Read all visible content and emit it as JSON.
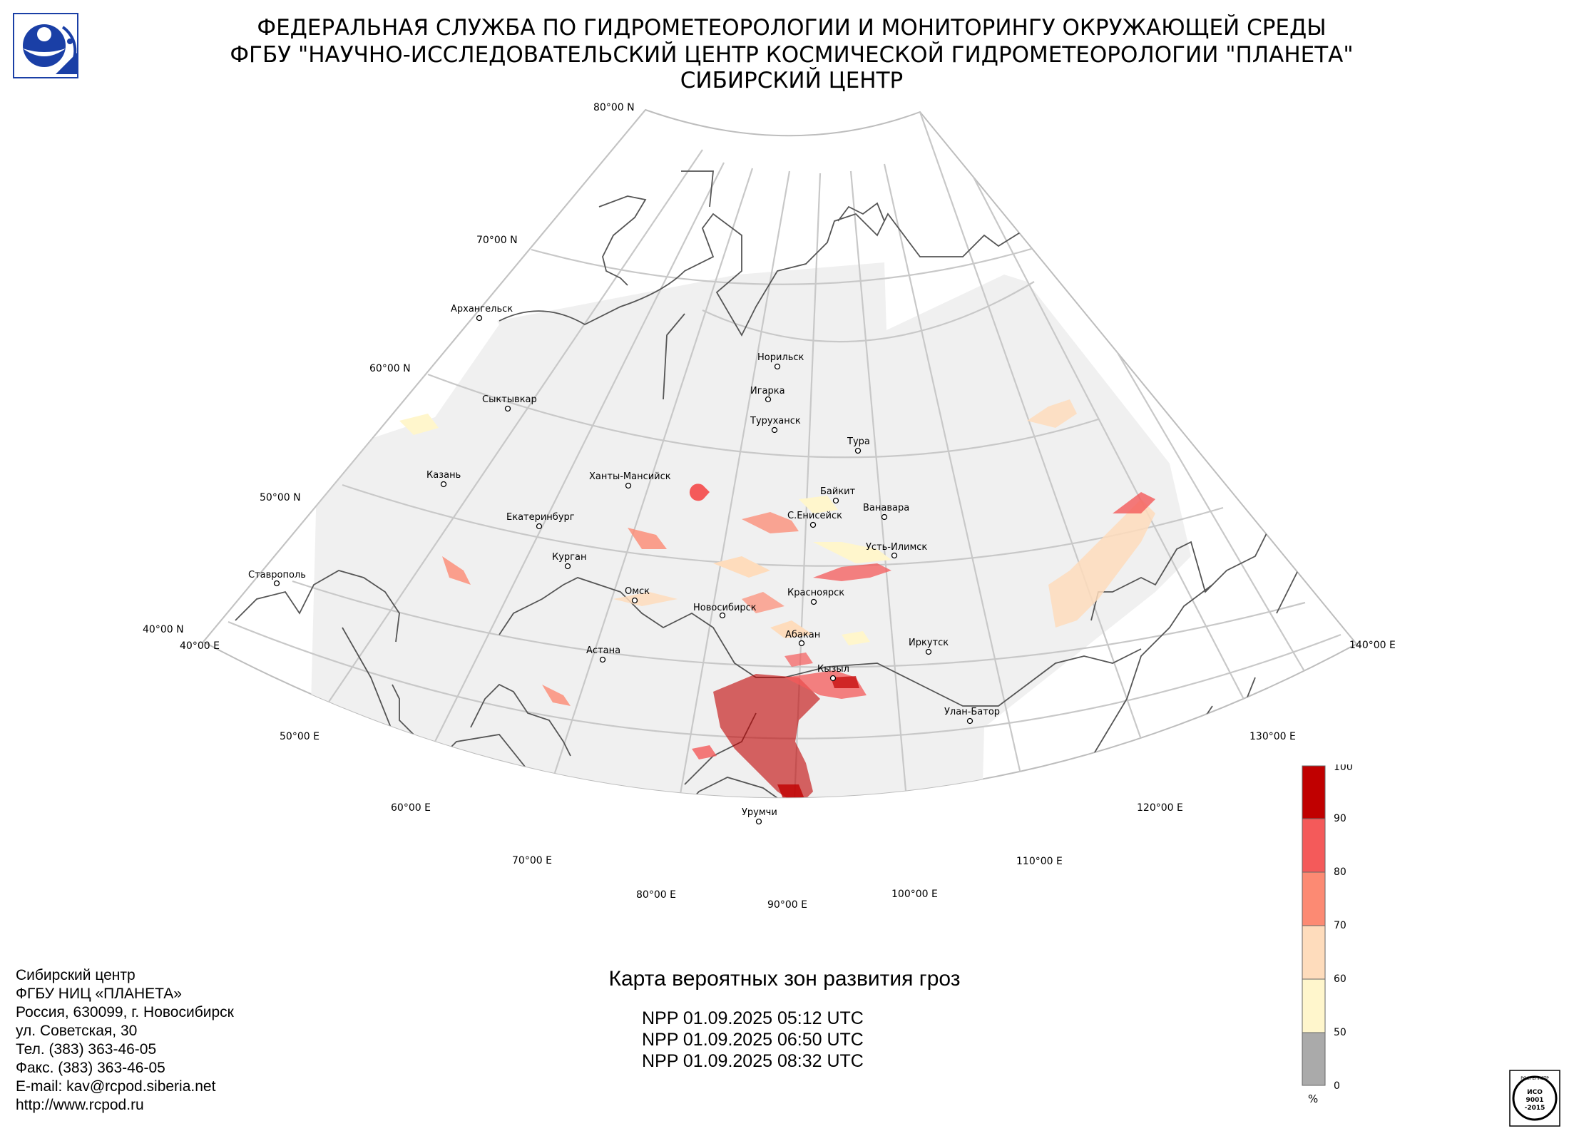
{
  "header": {
    "line1": "ФЕДЕРАЛЬНАЯ СЛУЖБА ПО ГИДРОМЕТЕОРОЛОГИИ И МОНИТОРИНГУ ОКРУЖАЮЩЕЙ СРЕДЫ",
    "line2": "ФГБУ \"НАУЧНО-ИССЛЕДОВАТЕЛЬСКИЙ ЦЕНТР КОСМИЧЕСКОЙ ГИДРОМЕТЕОРОЛОГИИ \"ПЛАНЕТА\"",
    "line3": "СИБИРСКИЙ ЦЕНТР"
  },
  "map": {
    "lat_labels": [
      "80°00 N",
      "70°00 N",
      "60°00 N",
      "50°00 N",
      "40°00 N"
    ],
    "lon_labels": [
      "40°00 E",
      "50°00 E",
      "60°00 E",
      "70°00 E",
      "80°00 E",
      "90°00 E",
      "100°00 E",
      "110°00 E",
      "120°00 E",
      "130°00 E",
      "140°00 E"
    ],
    "cities": [
      {
        "name": "Архангельск"
      },
      {
        "name": "Норильск"
      },
      {
        "name": "Игарка"
      },
      {
        "name": "Туруханск"
      },
      {
        "name": "Сыктывкар"
      },
      {
        "name": "Тура"
      },
      {
        "name": "Казань"
      },
      {
        "name": "Ханты-Мансийск"
      },
      {
        "name": "Байкит"
      },
      {
        "name": "Ванавара"
      },
      {
        "name": "Екатеринбург"
      },
      {
        "name": "С.Енисейск"
      },
      {
        "name": "Курган"
      },
      {
        "name": "Усть-Илимск"
      },
      {
        "name": "Ставрополь"
      },
      {
        "name": "Омск"
      },
      {
        "name": "Красноярск"
      },
      {
        "name": "Новосибирск"
      },
      {
        "name": "Абакан"
      },
      {
        "name": "Астана"
      },
      {
        "name": "Иркутск"
      },
      {
        "name": "Кызыл"
      },
      {
        "name": "Улан-Батор"
      },
      {
        "name": "Урумчи"
      }
    ],
    "colors": {
      "land_gray": "#f0f0f0",
      "graticule": "#c8c8c8",
      "coast": "#555555"
    }
  },
  "colorbar": {
    "ticks": [
      "0",
      "50",
      "60",
      "70",
      "80",
      "90",
      "100"
    ],
    "unit": "%",
    "colors": [
      "#aaaaaa",
      "#fff6cc",
      "#fedcbc",
      "#fc8a73",
      "#f45a5a",
      "#c00000"
    ]
  },
  "title": "Карта вероятных зон развития гроз",
  "passes": [
    "NPP 01.09.2025  05:12 UTC",
    "NPP 01.09.2025  06:50 UTC",
    "NPP 01.09.2025  08:32 UTC"
  ],
  "contacts": [
    "Сибирский центр",
    "ФГБУ НИЦ «ПЛАНЕТА»",
    "Россия, 630099, г. Новосибирск",
    "ул. Советская, 30",
    "Тел. (383) 363-46-05",
    "Факс. (383) 363-46-05",
    "E-mail: kav@rcpod.siberia.net",
    "http://www.rcpod.ru"
  ],
  "iso_badge": {
    "top": "РОСРЕГИСТР",
    "l1": "ИСО",
    "l2": "9001",
    "l3": "-2015"
  }
}
